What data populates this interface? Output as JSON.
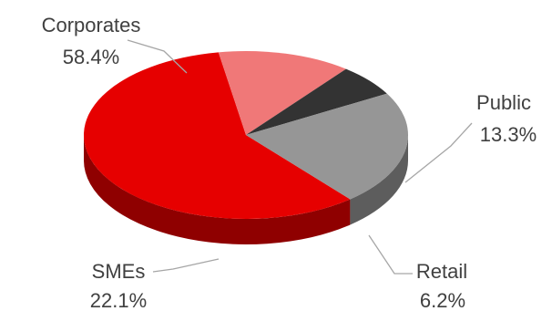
{
  "chart_data": {
    "type": "pie",
    "title": "",
    "slices": [
      {
        "name": "Corporates",
        "label": "58.4%",
        "value": 58.4,
        "color": "#e60000"
      },
      {
        "name": "Public",
        "label": "13.3%",
        "value": 13.3,
        "color": "#f07878"
      },
      {
        "name": "Retail",
        "label": "6.2%",
        "value": 6.2,
        "color": "#333333"
      },
      {
        "name": "SMEs",
        "label": "22.1%",
        "value": 22.1,
        "color": "#969696"
      }
    ],
    "legend": "none",
    "style": "3d-tilted"
  }
}
